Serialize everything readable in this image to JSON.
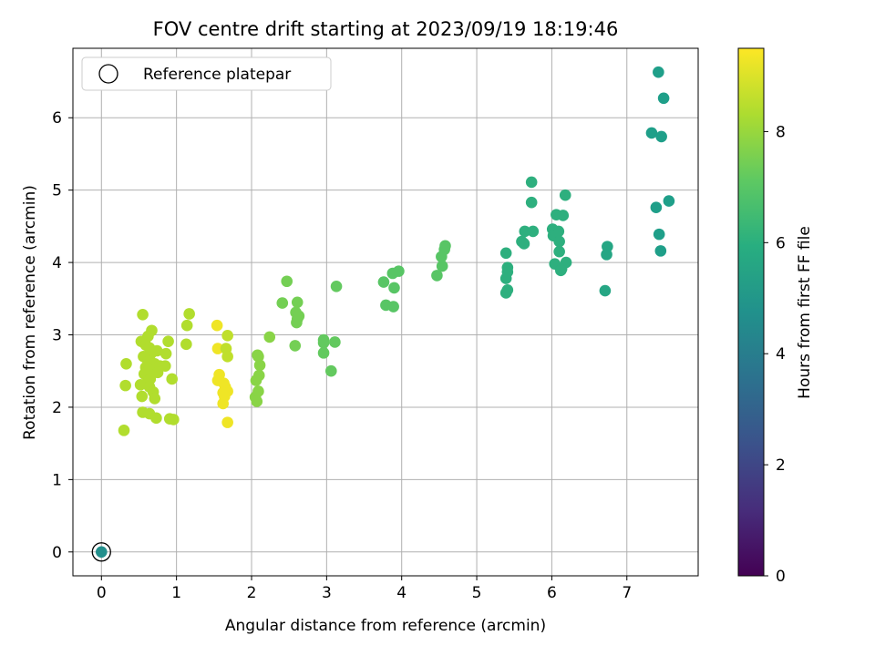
{
  "chart_data": {
    "type": "scatter",
    "title": "FOV centre drift starting at 2023/09/19 18:19:46",
    "xlabel": "Angular distance from reference (arcmin)",
    "ylabel": "Rotation from reference (arcmin)",
    "xlim": [
      -0.38,
      7.95
    ],
    "ylim": [
      -0.33,
      6.96
    ],
    "x_ticks": [
      0,
      1,
      2,
      3,
      4,
      5,
      6,
      7
    ],
    "y_ticks": [
      0,
      1,
      2,
      3,
      4,
      5,
      6
    ],
    "grid": true,
    "legend": {
      "location": "top-left",
      "entries": [
        "Reference platepar"
      ]
    },
    "colorbar": {
      "label": "Hours from first FF file",
      "range": [
        0,
        9.5
      ],
      "ticks": [
        0,
        2,
        4,
        6,
        8
      ],
      "colormap": "viridis"
    },
    "reference_point": {
      "x": 0,
      "y": 0,
      "hours": 4.7
    },
    "series": [
      {
        "points": [
          {
            "x": 0,
            "y": 0,
            "h": 4.7
          },
          {
            "x": 7.42,
            "y": 6.63,
            "h": 5.3
          },
          {
            "x": 7.49,
            "y": 6.27,
            "h": 5.3
          },
          {
            "x": 7.33,
            "y": 5.79,
            "h": 5.3
          },
          {
            "x": 7.46,
            "y": 5.74,
            "h": 5.3
          },
          {
            "x": 7.56,
            "y": 4.85,
            "h": 5.3
          },
          {
            "x": 7.39,
            "y": 4.76,
            "h": 5.3
          },
          {
            "x": 7.43,
            "y": 4.39,
            "h": 5.3
          },
          {
            "x": 7.45,
            "y": 4.16,
            "h": 5.3
          },
          {
            "x": 6.74,
            "y": 4.22,
            "h": 5.6
          },
          {
            "x": 6.73,
            "y": 4.11,
            "h": 5.6
          },
          {
            "x": 6.71,
            "y": 3.61,
            "h": 5.6
          },
          {
            "x": 5.73,
            "y": 5.11,
            "h": 6.0
          },
          {
            "x": 5.73,
            "y": 4.83,
            "h": 6.0
          },
          {
            "x": 6.18,
            "y": 4.93,
            "h": 6.0
          },
          {
            "x": 6.06,
            "y": 4.66,
            "h": 6.0
          },
          {
            "x": 6.15,
            "y": 4.65,
            "h": 6.0
          },
          {
            "x": 5.64,
            "y": 4.43,
            "h": 6.0
          },
          {
            "x": 5.75,
            "y": 4.43,
            "h": 6.0
          },
          {
            "x": 6.01,
            "y": 4.46,
            "h": 6.0
          },
          {
            "x": 6.09,
            "y": 4.43,
            "h": 6.0
          },
          {
            "x": 6.02,
            "y": 4.37,
            "h": 6.0
          },
          {
            "x": 6.06,
            "y": 4.38,
            "h": 6.0
          },
          {
            "x": 5.6,
            "y": 4.29,
            "h": 6.0
          },
          {
            "x": 5.63,
            "y": 4.26,
            "h": 6.0
          },
          {
            "x": 6.1,
            "y": 4.29,
            "h": 6.0
          },
          {
            "x": 6.1,
            "y": 4.15,
            "h": 6.0
          },
          {
            "x": 5.39,
            "y": 4.13,
            "h": 6.0
          },
          {
            "x": 6.04,
            "y": 3.98,
            "h": 6.0
          },
          {
            "x": 6.19,
            "y": 4.0,
            "h": 6.0
          },
          {
            "x": 6.13,
            "y": 3.91,
            "h": 6.0
          },
          {
            "x": 6.12,
            "y": 3.89,
            "h": 6.0
          },
          {
            "x": 5.41,
            "y": 3.93,
            "h": 6.0
          },
          {
            "x": 5.41,
            "y": 3.87,
            "h": 6.0
          },
          {
            "x": 5.39,
            "y": 3.78,
            "h": 6.0
          },
          {
            "x": 5.41,
            "y": 3.62,
            "h": 6.0
          },
          {
            "x": 5.39,
            "y": 3.58,
            "h": 6.0
          },
          {
            "x": 4.58,
            "y": 4.23,
            "h": 7.0
          },
          {
            "x": 4.57,
            "y": 4.18,
            "h": 7.0
          },
          {
            "x": 4.53,
            "y": 4.08,
            "h": 7.0
          },
          {
            "x": 4.54,
            "y": 3.95,
            "h": 7.0
          },
          {
            "x": 4.47,
            "y": 3.82,
            "h": 7.0
          },
          {
            "x": 3.96,
            "y": 3.88,
            "h": 7.0
          },
          {
            "x": 3.88,
            "y": 3.85,
            "h": 7.0
          },
          {
            "x": 3.76,
            "y": 3.73,
            "h": 7.0
          },
          {
            "x": 3.9,
            "y": 3.65,
            "h": 7.0
          },
          {
            "x": 3.79,
            "y": 3.41,
            "h": 7.0
          },
          {
            "x": 3.89,
            "y": 3.39,
            "h": 7.0
          },
          {
            "x": 3.13,
            "y": 3.67,
            "h": 7.2
          },
          {
            "x": 3.11,
            "y": 2.9,
            "h": 7.2
          },
          {
            "x": 2.96,
            "y": 2.93,
            "h": 7.2
          },
          {
            "x": 2.96,
            "y": 2.89,
            "h": 7.2
          },
          {
            "x": 2.96,
            "y": 2.75,
            "h": 7.2
          },
          {
            "x": 3.06,
            "y": 2.5,
            "h": 7.2
          },
          {
            "x": 2.47,
            "y": 3.74,
            "h": 7.5
          },
          {
            "x": 2.41,
            "y": 3.44,
            "h": 7.5
          },
          {
            "x": 2.61,
            "y": 3.45,
            "h": 7.5
          },
          {
            "x": 2.59,
            "y": 3.31,
            "h": 7.5
          },
          {
            "x": 2.63,
            "y": 3.26,
            "h": 7.5
          },
          {
            "x": 2.61,
            "y": 3.22,
            "h": 7.5
          },
          {
            "x": 2.6,
            "y": 3.17,
            "h": 7.5
          },
          {
            "x": 2.58,
            "y": 2.85,
            "h": 7.5
          },
          {
            "x": 2.24,
            "y": 2.97,
            "h": 7.8
          },
          {
            "x": 2.08,
            "y": 2.72,
            "h": 7.8
          },
          {
            "x": 2.09,
            "y": 2.7,
            "h": 7.8
          },
          {
            "x": 2.11,
            "y": 2.58,
            "h": 7.8
          },
          {
            "x": 2.1,
            "y": 2.44,
            "h": 7.8
          },
          {
            "x": 2.06,
            "y": 2.37,
            "h": 7.8
          },
          {
            "x": 2.09,
            "y": 2.22,
            "h": 7.8
          },
          {
            "x": 2.05,
            "y": 2.14,
            "h": 7.8
          },
          {
            "x": 2.07,
            "y": 2.08,
            "h": 7.8
          },
          {
            "x": 0.55,
            "y": 3.28,
            "h": 8.4
          },
          {
            "x": 1.17,
            "y": 3.29,
            "h": 8.4
          },
          {
            "x": 1.14,
            "y": 3.13,
            "h": 8.4
          },
          {
            "x": 0.67,
            "y": 3.06,
            "h": 8.4
          },
          {
            "x": 0.62,
            "y": 2.98,
            "h": 8.4
          },
          {
            "x": 0.53,
            "y": 2.91,
            "h": 8.4
          },
          {
            "x": 0.89,
            "y": 2.91,
            "h": 8.4
          },
          {
            "x": 1.13,
            "y": 2.87,
            "h": 8.4
          },
          {
            "x": 0.59,
            "y": 2.86,
            "h": 8.4
          },
          {
            "x": 0.64,
            "y": 2.82,
            "h": 8.4
          },
          {
            "x": 0.74,
            "y": 2.78,
            "h": 8.4
          },
          {
            "x": 0.66,
            "y": 2.74,
            "h": 8.4
          },
          {
            "x": 0.86,
            "y": 2.74,
            "h": 8.4
          },
          {
            "x": 0.56,
            "y": 2.7,
            "h": 8.4
          },
          {
            "x": 0.62,
            "y": 2.63,
            "h": 8.4
          },
          {
            "x": 0.33,
            "y": 2.6,
            "h": 8.4
          },
          {
            "x": 0.71,
            "y": 2.6,
            "h": 8.4
          },
          {
            "x": 0.78,
            "y": 2.57,
            "h": 8.4
          },
          {
            "x": 0.85,
            "y": 2.57,
            "h": 8.4
          },
          {
            "x": 0.59,
            "y": 2.55,
            "h": 8.4
          },
          {
            "x": 0.63,
            "y": 2.52,
            "h": 8.4
          },
          {
            "x": 0.75,
            "y": 2.48,
            "h": 8.4
          },
          {
            "x": 0.57,
            "y": 2.46,
            "h": 8.4
          },
          {
            "x": 0.65,
            "y": 2.39,
            "h": 8.4
          },
          {
            "x": 0.94,
            "y": 2.39,
            "h": 8.4
          },
          {
            "x": 0.62,
            "y": 2.35,
            "h": 8.4
          },
          {
            "x": 0.52,
            "y": 2.31,
            "h": 8.4
          },
          {
            "x": 0.32,
            "y": 2.3,
            "h": 8.4
          },
          {
            "x": 0.64,
            "y": 2.28,
            "h": 8.4
          },
          {
            "x": 0.69,
            "y": 2.21,
            "h": 8.4
          },
          {
            "x": 0.54,
            "y": 2.15,
            "h": 8.4
          },
          {
            "x": 0.71,
            "y": 2.12,
            "h": 8.4
          },
          {
            "x": 0.55,
            "y": 1.93,
            "h": 8.4
          },
          {
            "x": 0.64,
            "y": 1.91,
            "h": 8.4
          },
          {
            "x": 0.73,
            "y": 1.85,
            "h": 8.4
          },
          {
            "x": 0.91,
            "y": 1.84,
            "h": 8.4
          },
          {
            "x": 0.96,
            "y": 1.83,
            "h": 8.4
          },
          {
            "x": 0.3,
            "y": 1.68,
            "h": 8.4
          },
          {
            "x": 1.54,
            "y": 3.13,
            "h": 9.3
          },
          {
            "x": 1.55,
            "y": 2.81,
            "h": 9.3
          },
          {
            "x": 1.68,
            "y": 2.99,
            "h": 8.6
          },
          {
            "x": 1.66,
            "y": 2.81,
            "h": 8.6
          },
          {
            "x": 1.68,
            "y": 2.7,
            "h": 8.6
          },
          {
            "x": 1.57,
            "y": 2.45,
            "h": 9.3
          },
          {
            "x": 1.55,
            "y": 2.37,
            "h": 9.3
          },
          {
            "x": 1.63,
            "y": 2.33,
            "h": 9.3
          },
          {
            "x": 1.65,
            "y": 2.28,
            "h": 9.3
          },
          {
            "x": 1.68,
            "y": 2.22,
            "h": 9.3
          },
          {
            "x": 1.62,
            "y": 2.2,
            "h": 9.3
          },
          {
            "x": 1.64,
            "y": 2.15,
            "h": 9.3
          },
          {
            "x": 1.62,
            "y": 2.05,
            "h": 9.3
          },
          {
            "x": 1.68,
            "y": 1.79,
            "h": 9.3
          }
        ]
      }
    ]
  }
}
